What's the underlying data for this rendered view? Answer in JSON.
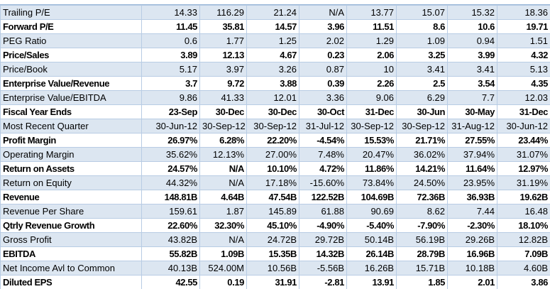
{
  "table": {
    "rows": [
      [
        "Trailing P/E",
        "14.33",
        "116.29",
        "21.24",
        "N/A",
        "13.77",
        "15.07",
        "15.32",
        "18.36"
      ],
      [
        "Forward P/E",
        "11.45",
        "35.81",
        "14.57",
        "3.96",
        "11.51",
        "8.6",
        "10.6",
        "19.71"
      ],
      [
        "PEG Ratio",
        "0.6",
        "1.77",
        "1.25",
        "2.02",
        "1.29",
        "1.09",
        "0.94",
        "1.51"
      ],
      [
        "Price/Sales",
        "3.89",
        "12.13",
        "4.67",
        "0.23",
        "2.06",
        "3.25",
        "3.99",
        "4.32"
      ],
      [
        "Price/Book",
        "5.17",
        "3.97",
        "3.26",
        "0.87",
        "10",
        "3.41",
        "3.41",
        "5.13"
      ],
      [
        "Enterprise Value/Revenue",
        "3.7",
        "9.72",
        "3.88",
        "0.39",
        "2.26",
        "2.5",
        "3.54",
        "4.35"
      ],
      [
        "Enterprise Value/EBITDA",
        "9.86",
        "41.33",
        "12.01",
        "3.36",
        "9.06",
        "6.29",
        "7.7",
        "12.03"
      ],
      [
        "Fiscal Year Ends",
        "23-Sep",
        "30-Dec",
        "30-Dec",
        "30-Oct",
        "31-Dec",
        "30-Jun",
        "30-May",
        "31-Dec"
      ],
      [
        "Most Recent Quarter",
        "30-Jun-12",
        "30-Sep-12",
        "30-Sep-12",
        "31-Jul-12",
        "30-Sep-12",
        "30-Sep-12",
        "31-Aug-12",
        "30-Jun-12"
      ],
      [
        "Profit Margin",
        "26.97%",
        "6.28%",
        "22.20%",
        "-4.54%",
        "15.53%",
        "21.71%",
        "27.55%",
        "23.44%"
      ],
      [
        "Operating Margin",
        "35.62%",
        "12.13%",
        "27.00%",
        "7.48%",
        "20.47%",
        "36.02%",
        "37.94%",
        "31.07%"
      ],
      [
        "Return on Assets",
        "24.57%",
        "N/A",
        "10.10%",
        "4.72%",
        "11.86%",
        "14.21%",
        "11.64%",
        "12.97%"
      ],
      [
        "Return on Equity",
        "44.32%",
        "N/A",
        "17.18%",
        "-15.60%",
        "73.84%",
        "24.50%",
        "23.95%",
        "31.19%"
      ],
      [
        "Revenue",
        "148.81B",
        "4.64B",
        "47.54B",
        "122.52B",
        "104.69B",
        "72.36B",
        "36.93B",
        "19.62B"
      ],
      [
        "Revenue Per Share",
        "159.61",
        "1.87",
        "145.89",
        "61.88",
        "90.69",
        "8.62",
        "7.44",
        "16.48"
      ],
      [
        "Qtrly Revenue Growth",
        "22.60%",
        "32.30%",
        "45.10%",
        "-4.90%",
        "-5.40%",
        "-7.90%",
        "-2.30%",
        "18.10%"
      ],
      [
        "Gross Profit",
        "43.82B",
        "N/A",
        "24.72B",
        "29.72B",
        "50.14B",
        "56.19B",
        "29.26B",
        "12.82B"
      ],
      [
        "EBITDA",
        "55.82B",
        "1.09B",
        "15.35B",
        "14.32B",
        "26.14B",
        "28.79B",
        "16.96B",
        "7.09B"
      ],
      [
        "Net Income Avl to Common",
        "40.13B",
        "524.00M",
        "10.56B",
        "-5.56B",
        "16.26B",
        "15.71B",
        "10.18B",
        "4.60B"
      ],
      [
        "Diluted EPS",
        "42.55",
        "0.19",
        "31.91",
        "-2.81",
        "13.91",
        "1.85",
        "2.01",
        "3.86"
      ]
    ]
  }
}
